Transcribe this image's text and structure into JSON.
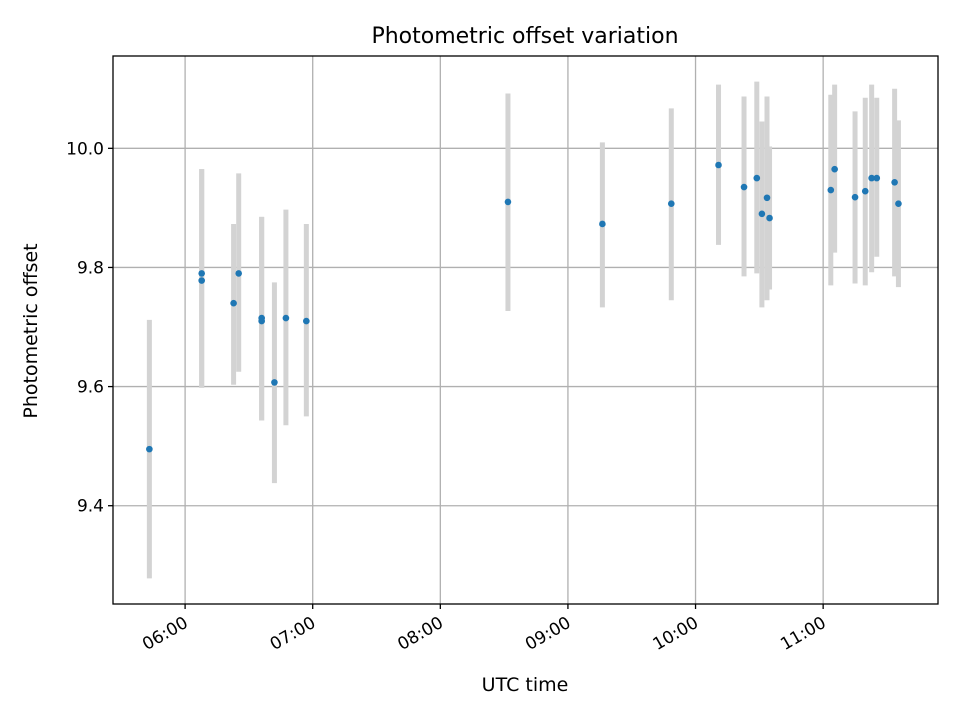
{
  "chart_data": {
    "type": "scatter",
    "title": "Photometric offset variation",
    "xlabel": "UTC time",
    "ylabel": "Photometric offset",
    "x_unit": "hours",
    "x_ticks": [
      {
        "value": 6,
        "label": "06:00"
      },
      {
        "value": 7,
        "label": "07:00"
      },
      {
        "value": 8,
        "label": "08:00"
      },
      {
        "value": 9,
        "label": "09:00"
      },
      {
        "value": 10,
        "label": "10:00"
      },
      {
        "value": 11,
        "label": "11:00"
      }
    ],
    "y_ticks": [
      {
        "value": 9.4,
        "label": "9.4"
      },
      {
        "value": 9.6,
        "label": "9.6"
      },
      {
        "value": 9.8,
        "label": "9.8"
      },
      {
        "value": 10.0,
        "label": "10.0"
      }
    ],
    "xlim": [
      5.435,
      11.9
    ],
    "ylim": [
      9.235,
      10.155
    ],
    "grid": true,
    "colors": {
      "point": "#1f77b4",
      "errorbar": "#d3d3d3",
      "grid": "#b0b0b0"
    },
    "points": [
      {
        "x": 5.72,
        "y": 9.495,
        "ylo": 9.278,
        "yhi": 9.712
      },
      {
        "x": 6.13,
        "y": 9.79,
        "ylo": 9.598,
        "yhi": 9.965
      },
      {
        "x": 6.13,
        "y": 9.778,
        "ylo": 9.598,
        "yhi": 9.965
      },
      {
        "x": 6.38,
        "y": 9.74,
        "ylo": 9.603,
        "yhi": 9.873
      },
      {
        "x": 6.42,
        "y": 9.79,
        "ylo": 9.625,
        "yhi": 9.958
      },
      {
        "x": 6.6,
        "y": 9.715,
        "ylo": 9.543,
        "yhi": 9.885
      },
      {
        "x": 6.6,
        "y": 9.71,
        "ylo": 9.543,
        "yhi": 9.885
      },
      {
        "x": 6.7,
        "y": 9.607,
        "ylo": 9.438,
        "yhi": 9.775
      },
      {
        "x": 6.79,
        "y": 9.715,
        "ylo": 9.535,
        "yhi": 9.897
      },
      {
        "x": 6.95,
        "y": 9.71,
        "ylo": 9.55,
        "yhi": 9.873
      },
      {
        "x": 8.53,
        "y": 9.91,
        "ylo": 9.727,
        "yhi": 10.092
      },
      {
        "x": 9.27,
        "y": 9.873,
        "ylo": 9.733,
        "yhi": 10.01
      },
      {
        "x": 9.81,
        "y": 9.907,
        "ylo": 9.745,
        "yhi": 10.067
      },
      {
        "x": 10.18,
        "y": 9.972,
        "ylo": 9.838,
        "yhi": 10.107
      },
      {
        "x": 10.38,
        "y": 9.935,
        "ylo": 9.785,
        "yhi": 10.087
      },
      {
        "x": 10.48,
        "y": 9.95,
        "ylo": 9.79,
        "yhi": 10.112
      },
      {
        "x": 10.52,
        "y": 9.89,
        "ylo": 9.733,
        "yhi": 10.045
      },
      {
        "x": 10.56,
        "y": 9.917,
        "ylo": 9.745,
        "yhi": 10.087
      },
      {
        "x": 10.58,
        "y": 9.883,
        "ylo": 9.763,
        "yhi": 10.003
      },
      {
        "x": 11.06,
        "y": 9.93,
        "ylo": 9.77,
        "yhi": 10.09
      },
      {
        "x": 11.09,
        "y": 9.965,
        "ylo": 9.825,
        "yhi": 10.107
      },
      {
        "x": 11.25,
        "y": 9.918,
        "ylo": 9.773,
        "yhi": 10.062
      },
      {
        "x": 11.33,
        "y": 9.928,
        "ylo": 9.77,
        "yhi": 10.085
      },
      {
        "x": 11.38,
        "y": 9.95,
        "ylo": 9.792,
        "yhi": 10.107
      },
      {
        "x": 11.42,
        "y": 9.95,
        "ylo": 9.818,
        "yhi": 10.085
      },
      {
        "x": 11.56,
        "y": 9.943,
        "ylo": 9.785,
        "yhi": 10.1
      },
      {
        "x": 11.59,
        "y": 9.907,
        "ylo": 9.767,
        "yhi": 10.047
      }
    ]
  }
}
